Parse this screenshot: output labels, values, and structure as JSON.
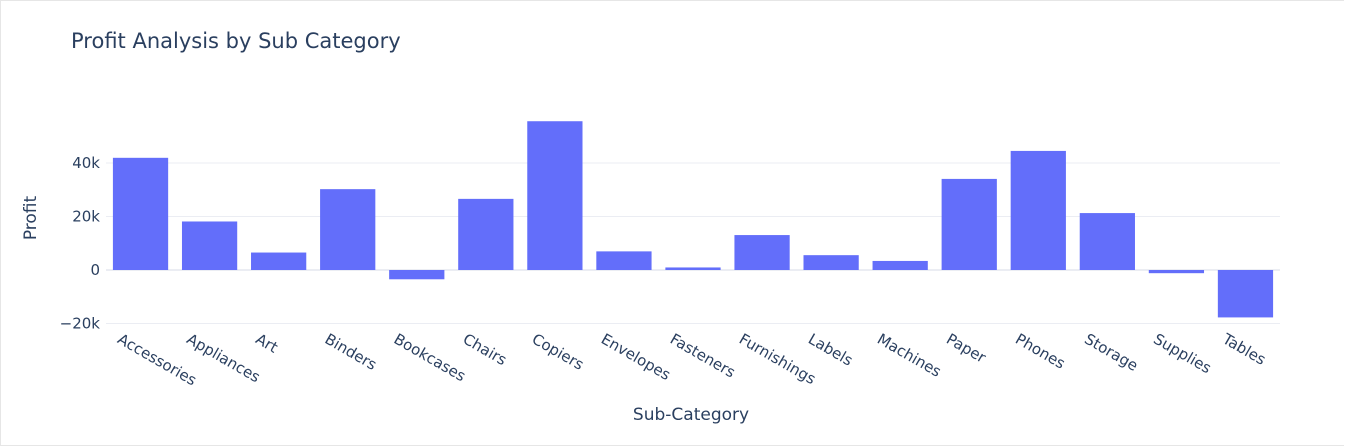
{
  "chart_data": {
    "type": "bar",
    "title": "Profit Analysis by Sub Category",
    "xlabel": "Sub-Category",
    "ylabel": "Profit",
    "categories": [
      "Accessories",
      "Appliances",
      "Art",
      "Binders",
      "Bookcases",
      "Chairs",
      "Copiers",
      "Envelopes",
      "Fasteners",
      "Furnishings",
      "Labels",
      "Machines",
      "Paper",
      "Phones",
      "Storage",
      "Supplies",
      "Tables"
    ],
    "values": [
      41937,
      18138,
      6528,
      30222,
      -3473,
      26590,
      55618,
      6964,
      950,
      13059,
      5546,
      3385,
      34054,
      44516,
      21279,
      -1189,
      -17725
    ],
    "ylim": [
      -20000,
      56000
    ],
    "yticks": [
      -20000,
      0,
      20000,
      40000
    ],
    "ytick_labels": [
      "−20k",
      "0",
      "20k",
      "40k"
    ],
    "bar_color": "#636efa",
    "grid": true,
    "legend": "none"
  }
}
